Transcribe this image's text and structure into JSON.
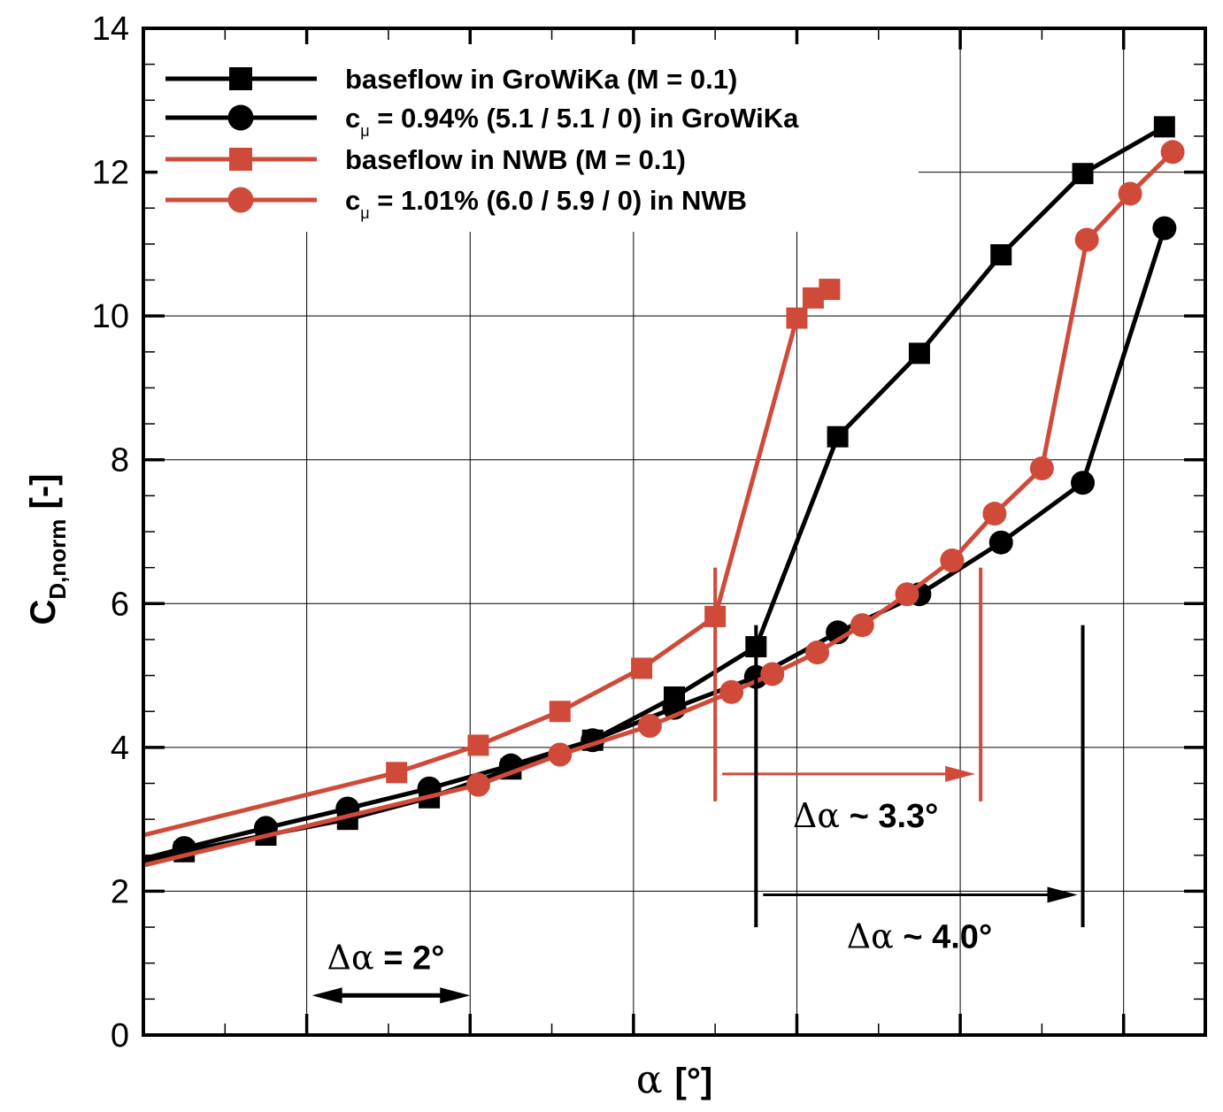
{
  "chart_data": {
    "type": "line",
    "title": "",
    "xlabel_symbol": "α",
    "xlabel_unit": "[°]",
    "ylabel_main": "C",
    "ylabel_sub": "D,norm",
    "ylabel_unit": "[-]",
    "xlim": [
      -10,
      3
    ],
    "ylim": [
      0,
      14
    ],
    "grid": true,
    "x_tick_labels_shown": false,
    "y_ticks": [
      0,
      2,
      4,
      6,
      8,
      10,
      12,
      14
    ],
    "y_tick_labels": [
      "0",
      "2",
      "4",
      "6",
      "8",
      "10",
      "12",
      "14"
    ],
    "legend_placement": "top-left",
    "series": [
      {
        "name": "baseflow in GroWiKa (M = 0.1)",
        "legend_parts": [
          "baseflow in GroWiKa (M = 0.1)"
        ],
        "color": "#000000",
        "marker": "square",
        "x": [
          -10.0,
          -9.5,
          -8.5,
          -7.5,
          -6.5,
          -5.5,
          -4.5,
          -3.5,
          -2.5,
          -1.5,
          -0.5,
          0.5,
          1.5,
          2.5
        ],
        "y": [
          2.42,
          2.55,
          2.78,
          3.0,
          3.3,
          3.7,
          4.1,
          4.7,
          5.4,
          8.32,
          9.48,
          10.85,
          11.98,
          12.63
        ]
      },
      {
        "name": "cμ = 0.94% (5.1 / 5.1 / 0) in GroWiKa",
        "legend_parts": [
          "c",
          "μ",
          " = 0.94% (5.1 / 5.1 / 0) in GroWiKa"
        ],
        "color": "#000000",
        "marker": "circle",
        "x": [
          -10.0,
          -9.5,
          -8.5,
          -7.5,
          -6.5,
          -5.5,
          -4.5,
          -3.5,
          -2.5,
          -1.5,
          -0.5,
          0.5,
          1.5,
          2.5
        ],
        "y": [
          2.45,
          2.6,
          2.88,
          3.15,
          3.43,
          3.75,
          4.1,
          4.55,
          4.98,
          5.6,
          6.13,
          6.85,
          7.68,
          11.22
        ]
      },
      {
        "name": "baseflow in NWB (M = 0.1)",
        "legend_parts": [
          "baseflow in NWB (M = 0.1)"
        ],
        "color": "#d04a3a",
        "marker": "square",
        "x": [
          -10.0,
          -6.9,
          -5.9,
          -4.9,
          -3.9,
          -3.0,
          -2.0,
          -1.8,
          -1.6
        ],
        "y": [
          2.78,
          3.65,
          4.03,
          4.5,
          5.1,
          5.82,
          9.97,
          10.25,
          10.37
        ]
      },
      {
        "name": "cμ = 1.01% (6.0 / 5.9 / 0) in NWB",
        "legend_parts": [
          "c",
          "μ",
          " = 1.01% (6.0 / 5.9 / 0) in NWB"
        ],
        "color": "#d04a3a",
        "marker": "circle",
        "x": [
          -10.0,
          -5.9,
          -4.9,
          -3.8,
          -2.8,
          -2.3,
          -1.75,
          -1.2,
          -0.65,
          -0.1,
          0.42,
          1.0,
          1.55,
          2.08,
          2.6
        ],
        "y": [
          2.36,
          3.48,
          3.9,
          4.3,
          4.77,
          5.02,
          5.32,
          5.7,
          6.13,
          6.6,
          7.25,
          7.88,
          11.06,
          11.7,
          12.28
        ]
      }
    ],
    "annotations": [
      {
        "text_symbol": "Δα",
        "text_rest": " = 2°",
        "arrow": "both",
        "x_from": -8.0,
        "x_to": -6.0,
        "y": 0.55,
        "color": "#000000"
      },
      {
        "text_symbol": "Δα",
        "text_rest": " ~ 3.3°",
        "arrow": "right",
        "x_from": -3.0,
        "x_to": 0.25,
        "y": 3.63,
        "markers_x": [
          -3.0,
          0.25
        ],
        "markers_y": [
          3.25,
          6.5
        ],
        "color": "#d04a3a"
      },
      {
        "text_symbol": "Δα",
        "text_rest": " ~ 4.0°",
        "arrow": "right",
        "x_from": -2.5,
        "x_to": 1.5,
        "y": 1.95,
        "markers_x": [
          -2.5,
          1.5
        ],
        "markers_y": [
          1.5,
          5.7
        ],
        "color": "#000000"
      }
    ]
  }
}
